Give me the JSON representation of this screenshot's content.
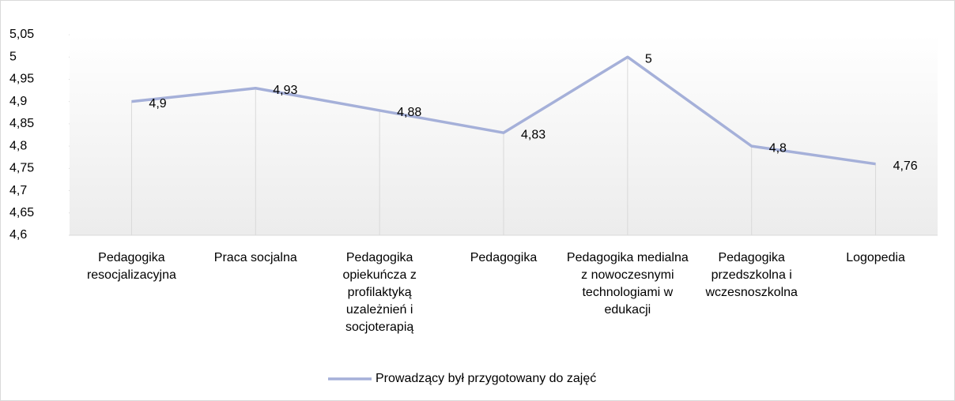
{
  "chart_data": {
    "type": "line",
    "categories": [
      "Pedagogika resocjalizacyjna",
      "Praca socjalna",
      "Pedagogika opiekuńcza z profilaktyką uzależnień i socjoterapią",
      "Pedagogika",
      "Pedagogika medialna z nowoczesnymi technologiami w edukacji",
      "Pedagogika przedszkolna i wczesnoszkolna",
      "Logopedia"
    ],
    "series": [
      {
        "name": "Prowadzący był przygotowany do zajęć",
        "color": "#a5b0d9",
        "values": [
          4.9,
          4.93,
          4.88,
          4.83,
          5,
          4.8,
          4.76
        ],
        "value_labels": [
          "4,9",
          "4,93",
          "4,88",
          "4,83",
          "5",
          "4,8",
          "4,76"
        ]
      }
    ],
    "ylim": [
      4.6,
      5.05
    ],
    "yticks": [
      {
        "value": 4.6,
        "label": "4,6"
      },
      {
        "value": 4.65,
        "label": "4,65"
      },
      {
        "value": 4.7,
        "label": "4,7"
      },
      {
        "value": 4.75,
        "label": "4,75"
      },
      {
        "value": 4.8,
        "label": "4,8"
      },
      {
        "value": 4.85,
        "label": "4,85"
      },
      {
        "value": 4.9,
        "label": "4,9"
      },
      {
        "value": 4.95,
        "label": "4,95"
      },
      5,
      {
        "value": 5.05,
        "label": "5,05"
      }
    ],
    "drop_lines": true,
    "legend": "bottom"
  }
}
